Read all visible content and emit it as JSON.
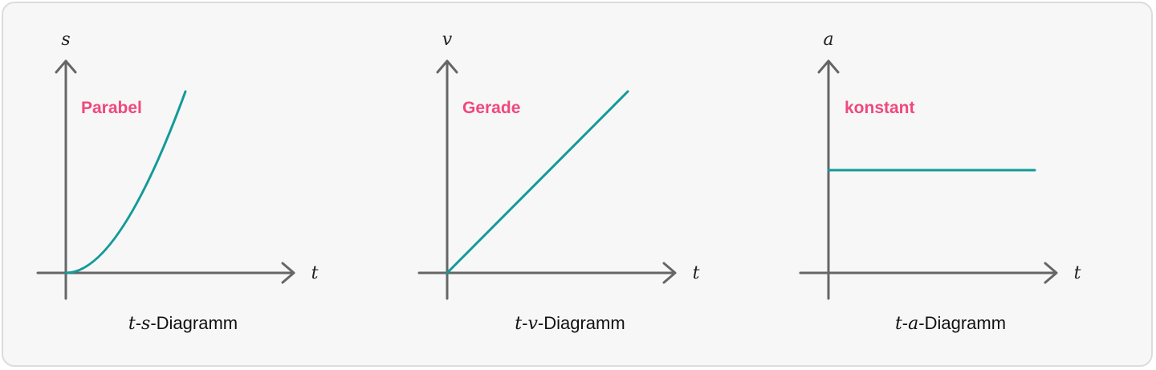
{
  "colors": {
    "curve": "#139a98",
    "label": "#f0487e",
    "axis": "#666666"
  },
  "diagrams": [
    {
      "id": "ts",
      "y_axis_label": "s",
      "x_axis_label": "t",
      "shape_label": "Parabel",
      "caption_var1": "t",
      "caption_sep": "-",
      "caption_var2": "s",
      "caption_suffix": "-Diagramm",
      "curve_type": "parabola"
    },
    {
      "id": "tv",
      "y_axis_label": "v",
      "x_axis_label": "t",
      "shape_label": "Gerade",
      "caption_var1": "t",
      "caption_sep": "-",
      "caption_var2": "v",
      "caption_suffix": "-Diagramm",
      "curve_type": "line"
    },
    {
      "id": "ta",
      "y_axis_label": "a",
      "x_axis_label": "t",
      "shape_label": "konstant",
      "caption_var1": "t",
      "caption_sep": "-",
      "caption_var2": "a",
      "caption_suffix": "-Diagramm",
      "curve_type": "constant"
    }
  ]
}
